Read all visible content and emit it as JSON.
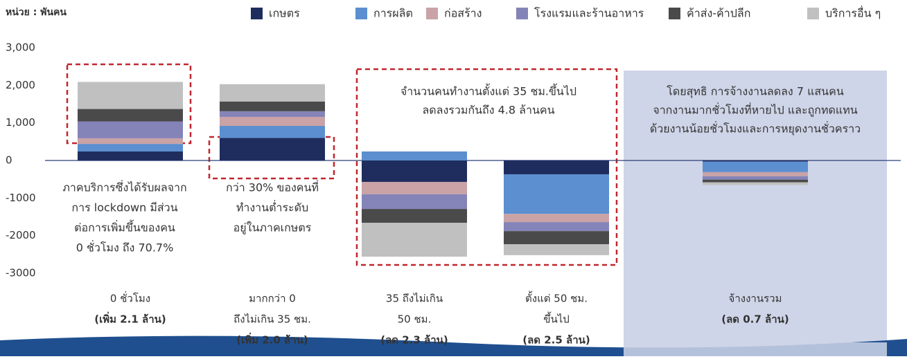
{
  "chart_data": {
    "type": "stacked-bar",
    "unit_label": "หน่วย : พันคน",
    "categories": [
      [
        "0 ชั่วโมง"
      ],
      [
        "มากกว่า 0",
        "ถึงไม่เกิน 35 ชม."
      ],
      [
        "35 ถึงไม่เกิน",
        "50 ชม."
      ],
      [
        "ตั้งแต่ 50 ชม.",
        "ขึ้นไป"
      ],
      [
        "จ้างงานรวม"
      ]
    ],
    "category_totals": [
      "(เพิ่ม 2.1 ล้าน)",
      "(เพิ่ม 2.0 ล้าน)",
      "(ลด 2.3 ล้าน)",
      "(ลด 2.5 ล้าน)",
      "(ลด 0.7 ล้าน)"
    ],
    "series": [
      {
        "name": "เกษตร",
        "color": "#1f2d5e",
        "values": [
          240,
          600,
          -570,
          -370,
          -30
        ]
      },
      {
        "name": "การผลิต",
        "color": "#5b8fd0",
        "values": [
          200,
          320,
          240,
          -1050,
          -280
        ]
      },
      {
        "name": "ก่อสร้าง",
        "color": "#c9a3a6",
        "values": [
          150,
          240,
          -330,
          -220,
          -110
        ]
      },
      {
        "name": "โรงแรมและร้านอาหาร",
        "color": "#8584b8",
        "values": [
          450,
          150,
          -390,
          -240,
          -90
        ]
      },
      {
        "name": "ค้าส่ง-ค้าปลีก",
        "color": "#4a4a4a",
        "values": [
          330,
          260,
          -370,
          -350,
          -70
        ]
      },
      {
        "name": "บริการอื่น ๆ",
        "color": "#c0c0c0",
        "values": [
          720,
          460,
          -900,
          -290,
          -70
        ]
      }
    ],
    "ylim": [
      -3000,
      3000
    ],
    "yticks": [
      -3000,
      -2000,
      -1000,
      0,
      {
        "value": 1000,
        "label": "1,000"
      },
      {
        "value": 2000,
        "label": "2,000"
      },
      {
        "value": 3000,
        "label": "3,000"
      }
    ],
    "annotations": [
      {
        "lines": [
          "ภาคบริการซึ่งได้รับผลจาก",
          "การ lockdown มีส่วน",
          "ต่อการเพิ่มขึ้นของคน",
          "0 ชั่วโมง ถึง 70.7%"
        ]
      },
      {
        "lines": [
          "กว่า 30% ของคนที่",
          "ทำงานต่ำระดับ",
          "อยู่ในภาคเกษตร"
        ]
      },
      {
        "lines": [
          "จำนวนคนทำงานตั้งแต่ 35 ชม.ขึ้นไป",
          "ลดลงรวมกันถึง 4.8 ล้านคน"
        ]
      },
      {
        "lines": [
          "โดยสุทธิ การจ้างงานลดลง 7 แสนคน",
          "จากงานมากชั่วโมงที่หายไป และถูกทดแทน",
          "ด้วยงานน้อยชั่วโมงและการหยุดงานชั่วคราว"
        ]
      }
    ]
  }
}
